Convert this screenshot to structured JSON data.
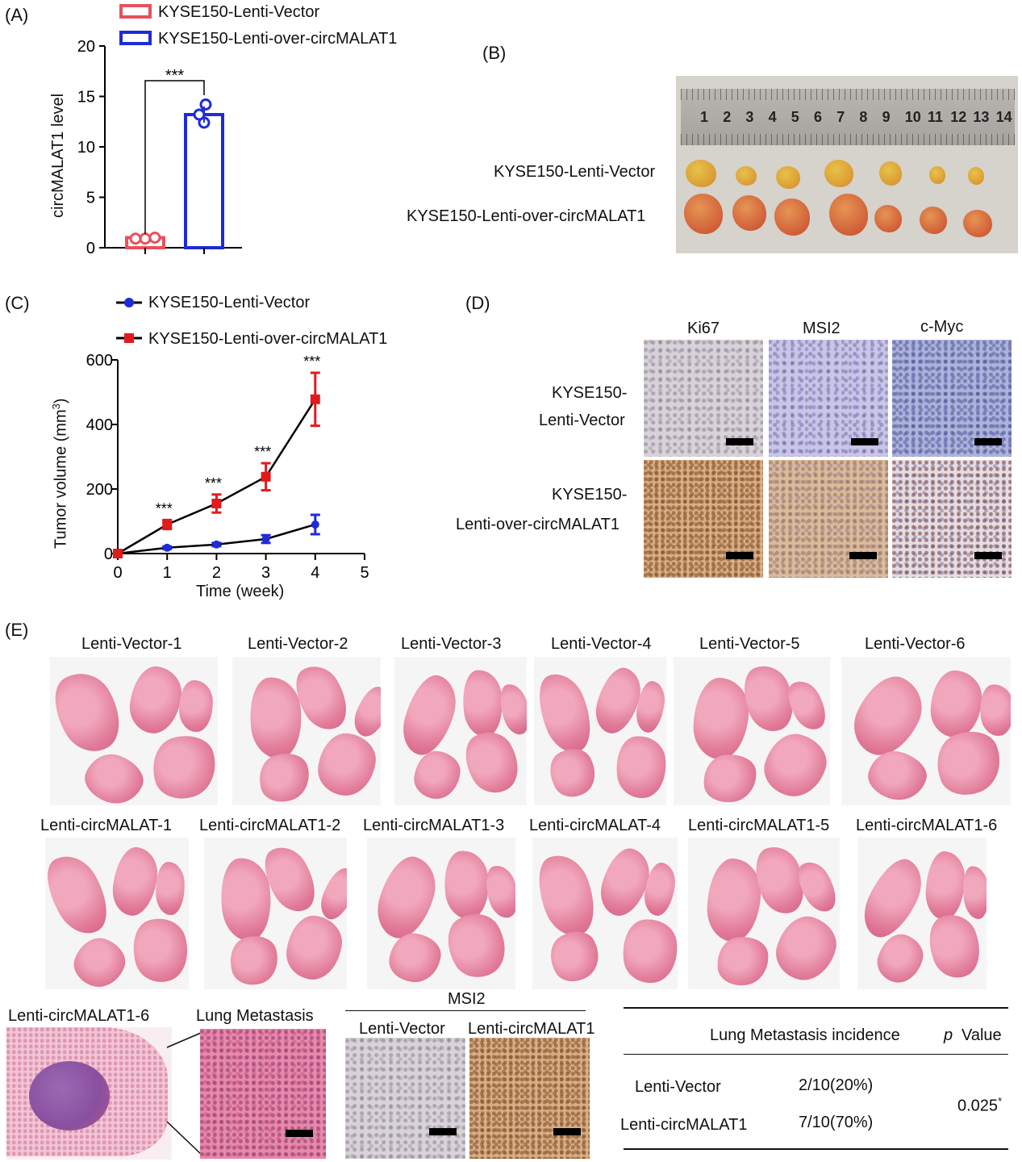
{
  "panelA": {
    "letter": "(A)",
    "legend": [
      "KYSE150-Lenti-Vector",
      "KYSE150-Lenti-over-circMALAT1"
    ],
    "ylabel": "circMALAT1 level",
    "yticks": [
      "0",
      "5",
      "10",
      "15",
      "20"
    ],
    "significance": "***",
    "colors": {
      "vector": "#e8515c",
      "over": "#1f2bd6"
    }
  },
  "panelB": {
    "letter": "(B)",
    "row_labels": [
      "KYSE150-Lenti-Vector",
      "KYSE150-Lenti-over-circMALAT1"
    ],
    "ruler_numbers": [
      "1",
      "2",
      "3",
      "4",
      "5",
      "6",
      "7",
      "8",
      "9",
      "10",
      "11",
      "12",
      "13",
      "14"
    ]
  },
  "panelC": {
    "letter": "(C)",
    "legend": [
      "KYSE150-Lenti-Vector",
      "KYSE150-Lenti-over-circMALAT1"
    ],
    "ylabel": "Tumor volume (mm",
    "ylabel_sup": "3",
    "ylabel_end": ")",
    "xlabel": "Time (week)",
    "xticks": [
      "0",
      "1",
      "2",
      "3",
      "4",
      "5"
    ],
    "yticks": [
      "0",
      "200",
      "400",
      "600"
    ],
    "significance": [
      "***",
      "***",
      "***",
      "***"
    ]
  },
  "panelD": {
    "letter": "(D)",
    "col_labels": [
      "Ki67",
      "MSI2",
      "c-Myc"
    ],
    "row1": [
      "KYSE150-",
      "Lenti-Vector"
    ],
    "row2": [
      "KYSE150-",
      "Lenti-over-circMALAT1"
    ]
  },
  "panelE": {
    "letter": "(E)",
    "vector_labels": [
      "Lenti-Vector-1",
      "Lenti-Vector-2",
      "Lenti-Vector-3",
      "Lenti-Vector-4",
      "Lenti-Vector-5",
      "Lenti-Vector-6"
    ],
    "circ_labels": [
      "Lenti-circMALAT-1",
      "Lenti-circMALAT1-2",
      "Lenti-circMALAT1-3",
      "Lenti-circMALAT-4",
      "Lenti-circMALAT1-5",
      "Lenti-circMALAT1-6"
    ],
    "zoom_label": "Lenti-circMALAT1-6",
    "metastasis_label": "Lung Metastasis",
    "msi2_title": "MSI2",
    "msi2_cols": [
      "Lenti-Vector",
      "Lenti-circMALAT1"
    ],
    "table": {
      "header_incidence": "Lung Metastasis incidence",
      "header_p": "p",
      "header_value": "Value",
      "rows": [
        {
          "group": "Lenti-Vector",
          "incidence": "2/10(20%)"
        },
        {
          "group": "Lenti-circMALAT1",
          "incidence": "7/10(70%)"
        }
      ],
      "p_value": "0.025",
      "p_mark": "*"
    }
  },
  "chart_data": [
    {
      "type": "bar",
      "categories": [
        "KYSE150-Lenti-Vector",
        "KYSE150-Lenti-over-circMALAT1"
      ],
      "values": [
        1.0,
        13.2
      ],
      "points": [
        [
          0.9,
          0.9,
          1.0
        ],
        [
          12.4,
          13.2,
          14.2
        ]
      ],
      "ylabel": "circMALAT1 level",
      "ylim": [
        0,
        20
      ]
    },
    {
      "type": "line",
      "x": [
        0,
        1,
        2,
        3,
        4
      ],
      "series": [
        {
          "name": "KYSE150-Lenti-Vector",
          "values": [
            0,
            18,
            28,
            45,
            90
          ],
          "errors": [
            0,
            4,
            5,
            12,
            30
          ]
        },
        {
          "name": "KYSE150-Lenti-over-circMALAT1",
          "values": [
            0,
            90,
            155,
            238,
            478
          ],
          "errors": [
            0,
            14,
            28,
            42,
            82
          ]
        }
      ],
      "xlabel": "Time (week)",
      "ylabel": "Tumor volume (mm3)",
      "xlim": [
        0,
        5
      ],
      "ylim": [
        0,
        600
      ]
    }
  ]
}
